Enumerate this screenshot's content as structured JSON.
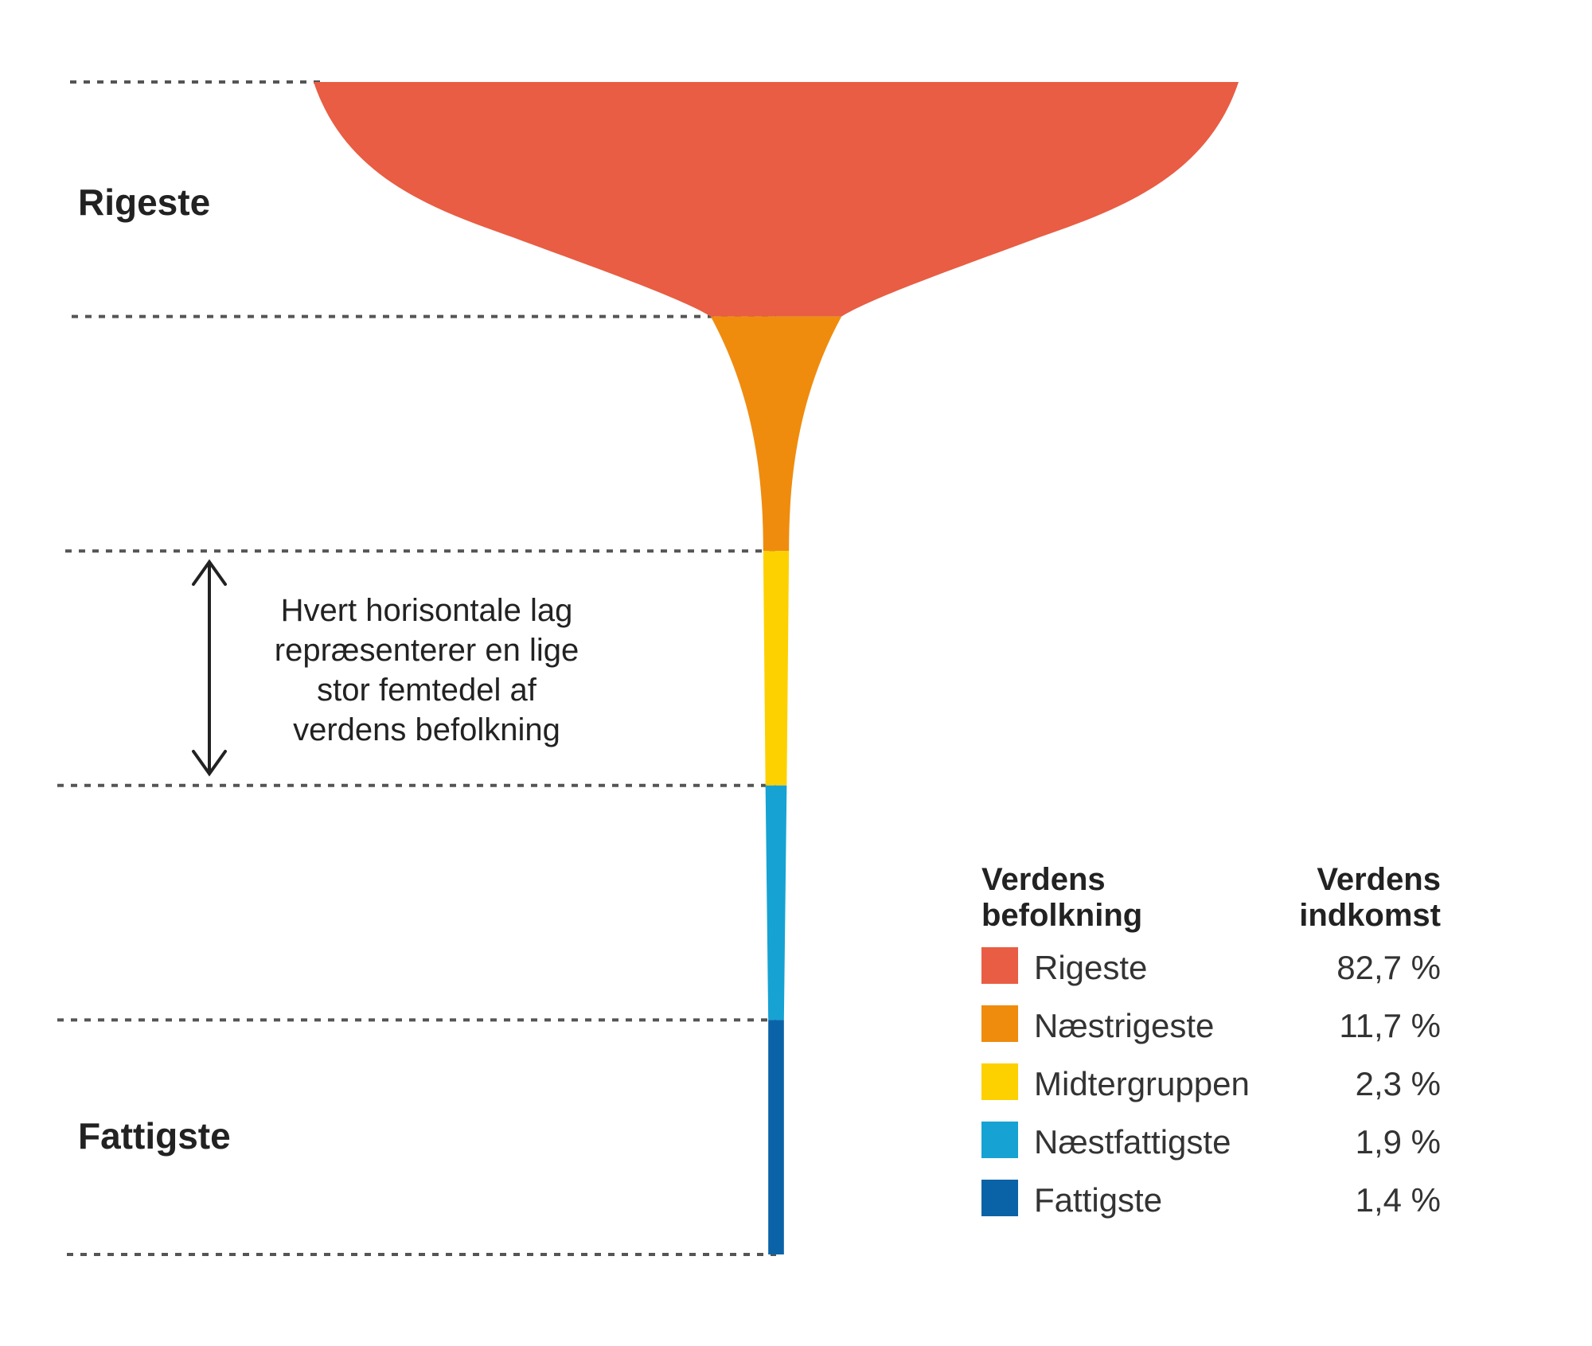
{
  "chart_data": {
    "type": "area",
    "title": "",
    "bands": [
      {
        "name": "Rigeste",
        "income_share_percent": 82.7,
        "color": "#E85D43",
        "value_label": "82,7 %"
      },
      {
        "name": "Næstrigeste",
        "income_share_percent": 11.7,
        "color": "#EF8C0E",
        "value_label": "11,7 %"
      },
      {
        "name": "Midtergruppen",
        "income_share_percent": 2.3,
        "color": "#FDD100",
        "value_label": "2,3 %"
      },
      {
        "name": "Næstfattigste",
        "income_share_percent": 1.9,
        "color": "#16A3D3",
        "value_label": "1,9 %"
      },
      {
        "name": "Fattigste",
        "income_share_percent": 1.4,
        "color": "#0B63A7",
        "value_label": "1,4 %"
      }
    ],
    "row_labels": {
      "top": "Rigeste",
      "bottom": "Fattigste"
    },
    "annotation": {
      "lines": [
        "Hvert horisontale lag",
        "repræsenterer en lige",
        "stor femtedel af",
        "verdens befolkning"
      ]
    },
    "legend": {
      "header_left": [
        "Verdens",
        "befolkning"
      ],
      "header_right": [
        "Verdens",
        "indkomst"
      ],
      "placement": "bottom-right"
    },
    "grid": "dotted horizontal separators between population fifths"
  }
}
